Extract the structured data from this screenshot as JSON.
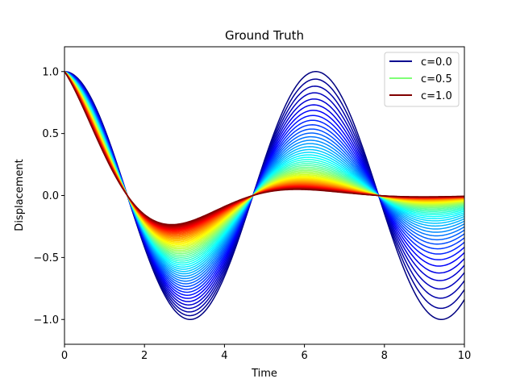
{
  "chart_data": {
    "type": "line",
    "title": "Ground Truth",
    "xlabel": "Time",
    "ylabel": "Displacement",
    "xlim": [
      0,
      10
    ],
    "ylim": [
      -1.2,
      1.2
    ],
    "xticks": [
      0,
      2,
      4,
      6,
      8,
      10
    ],
    "xtick_labels": [
      "0",
      "2",
      "4",
      "6",
      "8",
      "10"
    ],
    "yticks": [
      1.0,
      0.5,
      0.0,
      -0.5,
      -1.0
    ],
    "ytick_labels": [
      "1.0",
      "0.5",
      "0.0",
      "−0.5",
      "−1.0"
    ],
    "grid": false,
    "legend_position": "top-right",
    "colormap": "jet",
    "curve_family": {
      "model": "damped oscillation x(t) = exp(-c t / 2) cos(t)",
      "parameter": "c",
      "c_range": [
        0.0,
        1.0
      ],
      "num_curves": 51,
      "t_range": [
        0,
        10
      ]
    },
    "series": [
      {
        "name": "c=0.0",
        "color": "#00008f",
        "x": [
          0,
          1,
          2,
          3,
          4,
          5,
          6,
          7,
          8,
          9,
          10
        ],
        "values": [
          1.0,
          0.54,
          -0.416,
          -0.99,
          -0.654,
          0.284,
          0.96,
          0.754,
          -0.146,
          -0.911,
          -0.839
        ]
      },
      {
        "name": "c=0.5",
        "color": "#80ff77",
        "x": [
          0,
          1,
          2,
          3,
          4,
          5,
          6,
          7,
          8,
          9,
          10
        ],
        "values": [
          1.0,
          0.421,
          -0.252,
          -0.468,
          -0.241,
          0.081,
          0.213,
          0.131,
          -0.02,
          -0.096,
          -0.069
        ]
      },
      {
        "name": "c=1.0",
        "color": "#800000",
        "x": [
          0,
          1,
          2,
          3,
          4,
          5,
          6,
          7,
          8,
          9,
          10
        ],
        "values": [
          1.0,
          0.328,
          -0.153,
          -0.221,
          -0.089,
          0.023,
          0.048,
          0.023,
          -0.003,
          -0.01,
          -0.006
        ]
      }
    ]
  }
}
